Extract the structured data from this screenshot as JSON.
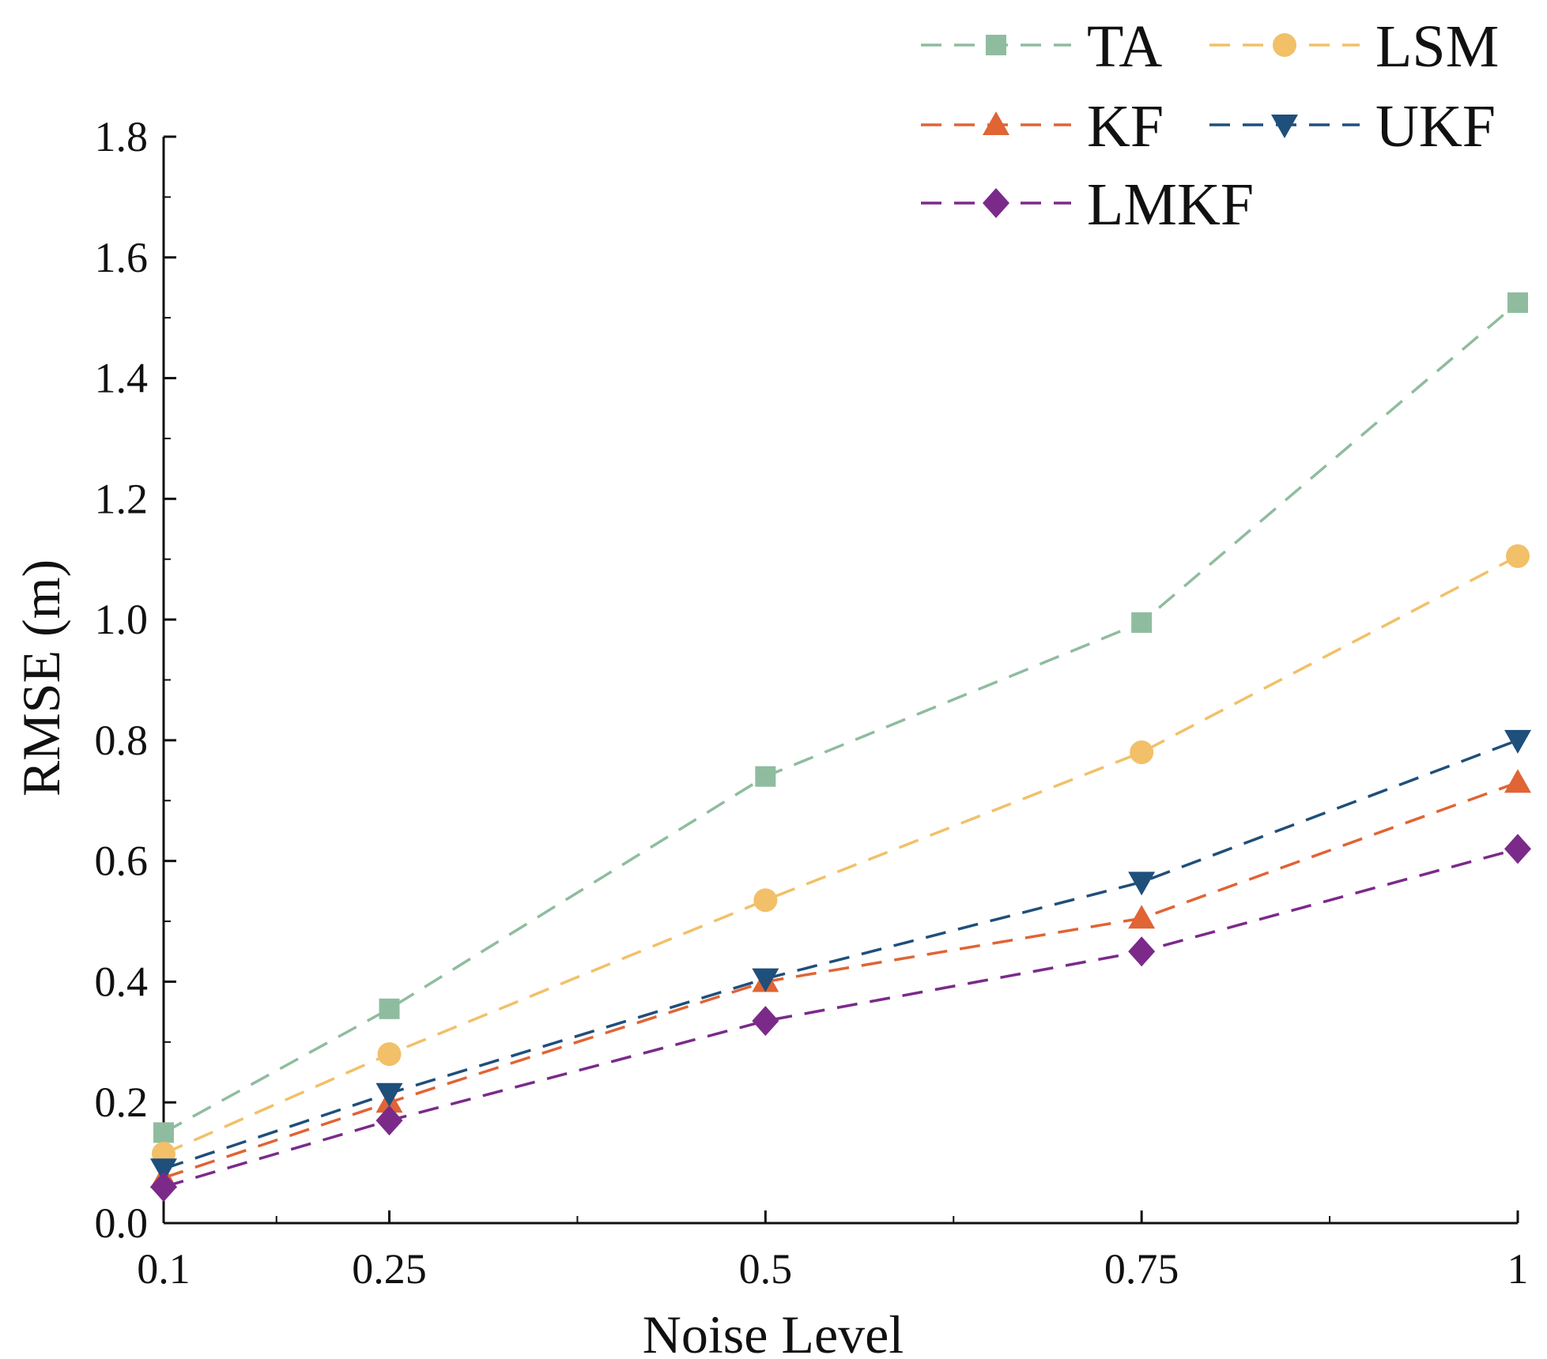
{
  "chart_data": {
    "type": "line",
    "title": "",
    "xlabel": "Noise Level",
    "ylabel": "RMSE (m)",
    "xlim": [
      0.1,
      1
    ],
    "ylim": [
      0,
      1.8
    ],
    "x_ticks": [
      0.1,
      0.25,
      0.5,
      0.75,
      1
    ],
    "x_tick_labels": [
      "0.1",
      "0.25",
      "0.5",
      "0.75",
      "1"
    ],
    "x_minor_ticks": [
      0.175,
      0.375,
      0.625,
      0.875
    ],
    "y_ticks": [
      0,
      0.2,
      0.4,
      0.6,
      0.8,
      1.0,
      1.2,
      1.4,
      1.6,
      1.8
    ],
    "y_tick_labels": [
      "0.0",
      "0.2",
      "0.4",
      "0.6",
      "0.8",
      "1.0",
      "1.2",
      "1.4",
      "1.6",
      "1.8"
    ],
    "y_minor_ticks": [
      0.1,
      0.3,
      0.5,
      0.7,
      0.9,
      1.1,
      1.3,
      1.5,
      1.7
    ],
    "grid": false,
    "legend_position": "top-right",
    "x": [
      0.1,
      0.25,
      0.5,
      0.75,
      1
    ],
    "series": [
      {
        "name": "TA",
        "color": "#8fbc9f",
        "marker": "square",
        "values": [
          0.15,
          0.355,
          0.74,
          0.995,
          1.525
        ]
      },
      {
        "name": "LSM",
        "color": "#f2c068",
        "marker": "circle",
        "values": [
          0.115,
          0.28,
          0.535,
          0.78,
          1.105
        ]
      },
      {
        "name": "KF",
        "color": "#e06434",
        "marker": "triangle-up",
        "values": [
          0.075,
          0.2,
          0.4,
          0.505,
          0.73
        ]
      },
      {
        "name": "UKF",
        "color": "#1f4f7b",
        "marker": "triangle-down",
        "values": [
          0.09,
          0.215,
          0.405,
          0.565,
          0.8
        ]
      },
      {
        "name": "LMKF",
        "color": "#7b2a8a",
        "marker": "diamond",
        "values": [
          0.06,
          0.17,
          0.335,
          0.45,
          0.62
        ]
      }
    ]
  }
}
